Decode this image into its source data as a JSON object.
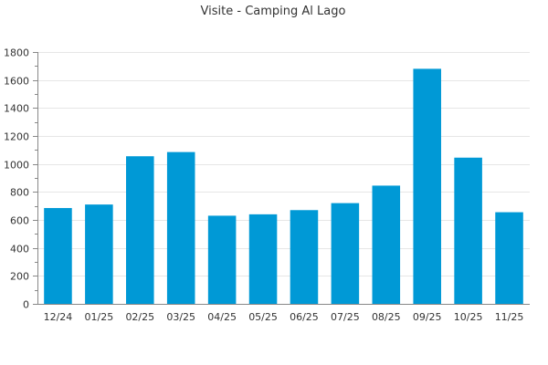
{
  "chart_data": {
    "type": "bar",
    "title": "Visite - Camping Al Lago",
    "xlabel": "",
    "ylabel": "",
    "categories": [
      "12/24",
      "01/25",
      "02/25",
      "03/25",
      "04/25",
      "05/25",
      "06/25",
      "07/25",
      "08/25",
      "09/25",
      "10/25",
      "11/25"
    ],
    "values": [
      685,
      710,
      1055,
      1085,
      630,
      640,
      670,
      720,
      845,
      1680,
      1045,
      655
    ],
    "ylim": [
      0,
      1800
    ],
    "yticks": [
      0,
      200,
      400,
      600,
      800,
      1000,
      1200,
      1400,
      1600,
      1800
    ],
    "grid": true,
    "legend": "none",
    "bar_color": "#0099d6"
  }
}
